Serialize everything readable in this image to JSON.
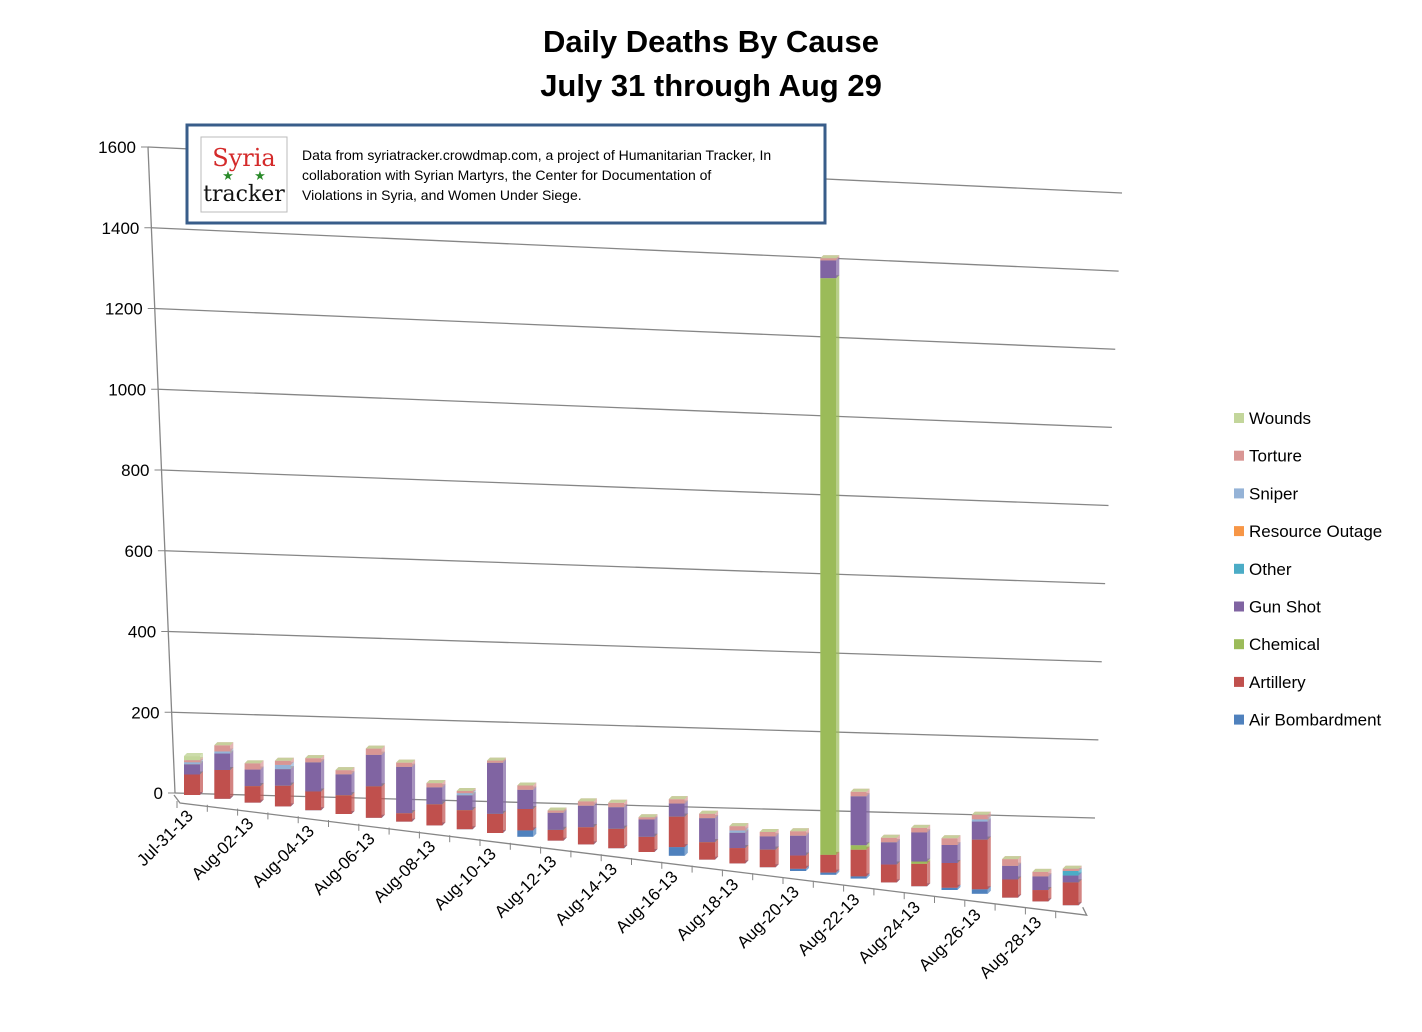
{
  "chart_data": {
    "type": "stacked-bar-3d",
    "title": [
      "Daily Deaths By Cause",
      "July 31 through Aug 29"
    ],
    "annotation": {
      "logo": [
        "Syria",
        "tracker"
      ],
      "lines": [
        "Data from syriatracker.crowdmap.com, a project of Humanitarian Tracker, In",
        "collaboration with Syrian Martyrs, the Center for Documentation of",
        "Violations in Syria, and Women Under Siege."
      ]
    },
    "categories": [
      "Jul-31-13",
      null,
      "Aug-02-13",
      null,
      "Aug-04-13",
      null,
      "Aug-06-13",
      null,
      "Aug-08-13",
      null,
      "Aug-10-13",
      null,
      "Aug-12-13",
      null,
      "Aug-14-13",
      null,
      "Aug-16-13",
      null,
      "Aug-18-13",
      null,
      "Aug-20-13",
      null,
      "Aug-22-13",
      null,
      "Aug-24-13",
      null,
      "Aug-26-13",
      null,
      "Aug-28-13",
      null
    ],
    "ylim": [
      0,
      1600
    ],
    "yticks": [
      0,
      200,
      400,
      600,
      800,
      1000,
      1200,
      1400,
      1600
    ],
    "grid": true,
    "series": [
      {
        "name": "Air Bombardment",
        "color": "#4f81bd",
        "values": [
          0,
          0,
          0,
          0,
          0,
          0,
          0,
          0,
          0,
          0,
          0,
          15,
          0,
          0,
          0,
          0,
          20,
          0,
          0,
          0,
          5,
          5,
          5,
          0,
          0,
          5,
          10,
          0,
          0,
          0
        ]
      },
      {
        "name": "Artillery",
        "color": "#c0504d",
        "values": [
          50,
          70,
          40,
          50,
          45,
          45,
          75,
          20,
          50,
          45,
          45,
          50,
          25,
          40,
          45,
          35,
          70,
          40,
          35,
          40,
          30,
          40,
          60,
          40,
          50,
          55,
          110,
          40,
          25,
          50
        ]
      },
      {
        "name": "Chemical",
        "color": "#9bbb59",
        "values": [
          0,
          0,
          0,
          0,
          0,
          0,
          0,
          0,
          0,
          0,
          0,
          0,
          0,
          0,
          0,
          0,
          0,
          0,
          0,
          0,
          0,
          1300,
          10,
          0,
          5,
          0,
          0,
          0,
          0,
          0
        ]
      },
      {
        "name": "Gun Shot",
        "color": "#8064a2",
        "values": [
          25,
          40,
          40,
          40,
          70,
          50,
          75,
          110,
          40,
          35,
          120,
          45,
          40,
          50,
          50,
          40,
          30,
          55,
          35,
          30,
          45,
          40,
          110,
          50,
          65,
          40,
          40,
          30,
          30,
          15
        ]
      },
      {
        "name": "Other",
        "color": "#4bacc6",
        "values": [
          0,
          0,
          0,
          0,
          0,
          0,
          0,
          0,
          0,
          0,
          0,
          0,
          0,
          0,
          0,
          0,
          0,
          0,
          0,
          0,
          0,
          0,
          0,
          0,
          0,
          0,
          0,
          0,
          0,
          10
        ]
      },
      {
        "name": "Resource Outage",
        "color": "#f79646",
        "values": [
          0,
          0,
          0,
          0,
          0,
          0,
          0,
          0,
          0,
          0,
          0,
          0,
          0,
          0,
          0,
          0,
          0,
          0,
          0,
          0,
          0,
          0,
          0,
          0,
          0,
          0,
          0,
          0,
          0,
          0
        ]
      },
      {
        "name": "Sniper",
        "color": "#95b3d7",
        "values": [
          5,
          5,
          0,
          10,
          0,
          0,
          0,
          0,
          0,
          5,
          0,
          0,
          0,
          0,
          0,
          0,
          0,
          0,
          5,
          0,
          0,
          0,
          0,
          0,
          0,
          0,
          5,
          0,
          0,
          0
        ]
      },
      {
        "name": "Torture",
        "color": "#d99694",
        "values": [
          5,
          15,
          15,
          10,
          10,
          10,
          15,
          10,
          10,
          5,
          5,
          10,
          5,
          10,
          10,
          5,
          10,
          10,
          10,
          10,
          10,
          5,
          10,
          10,
          10,
          15,
          10,
          15,
          10,
          5
        ]
      },
      {
        "name": "Wounds",
        "color": "#c3d69b",
        "values": [
          10,
          0,
          0,
          0,
          0,
          0,
          0,
          0,
          0,
          0,
          0,
          0,
          0,
          0,
          0,
          0,
          0,
          0,
          0,
          0,
          0,
          0,
          0,
          0,
          0,
          0,
          0,
          0,
          0,
          0
        ]
      }
    ]
  }
}
